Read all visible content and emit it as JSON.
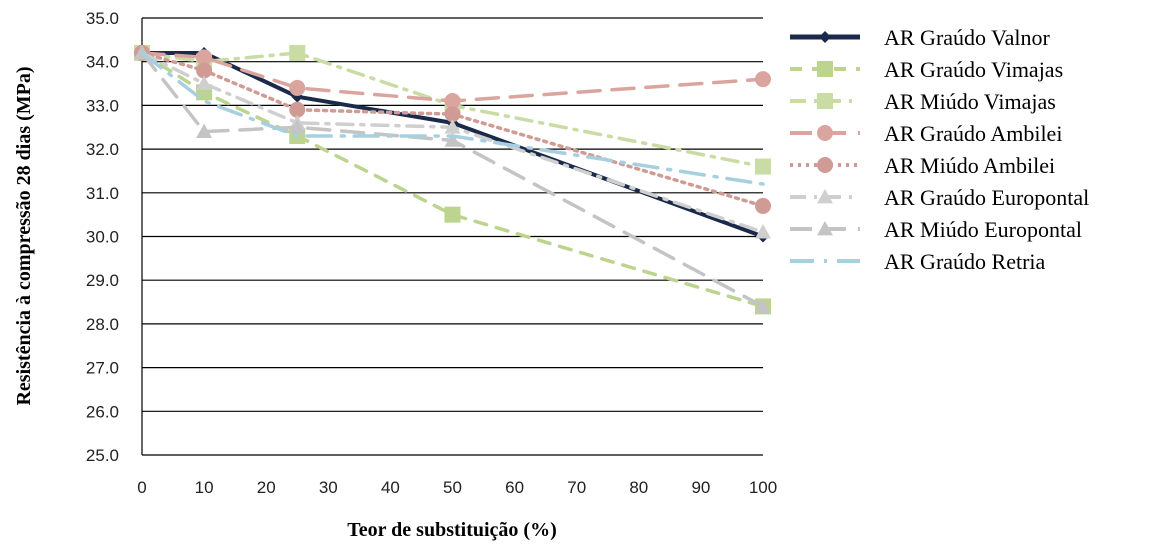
{
  "chart_data": {
    "type": "line",
    "title": "",
    "xlabel": "Teor de substituição (%)",
    "ylabel": "Resistência à compressão 28 dias (MPa)",
    "xlim": [
      0,
      100
    ],
    "ylim": [
      25.0,
      35.0
    ],
    "x_ticks": [
      "0",
      "10",
      "20",
      "30",
      "40",
      "50",
      "60",
      "70",
      "80",
      "90",
      "100"
    ],
    "y_ticks": [
      "25.0",
      "26.0",
      "27.0",
      "28.0",
      "29.0",
      "30.0",
      "31.0",
      "32.0",
      "33.0",
      "34.0",
      "35.0"
    ],
    "grid": "horizontal",
    "legend_position": "right",
    "series": [
      {
        "name": "AR Graúdo Valnor",
        "color": "#1b2a4a",
        "marker": "diamond",
        "dash": "solid",
        "x": [
          0,
          10,
          25,
          50,
          100
        ],
        "y": [
          34.2,
          34.2,
          33.2,
          32.6,
          30.0
        ]
      },
      {
        "name": "AR Graúdo Vimajas",
        "color": "#bcd48e",
        "marker": "square",
        "dash": "dash",
        "x": [
          0,
          10,
          25,
          50,
          100
        ],
        "y": [
          34.2,
          33.3,
          32.3,
          30.5,
          28.4
        ]
      },
      {
        "name": "AR Miúdo Vimajas",
        "color": "#c8dca4",
        "marker": "square",
        "dash": "dashdot",
        "x": [
          0,
          10,
          25,
          50,
          100
        ],
        "y": [
          34.2,
          34.0,
          34.2,
          33.0,
          31.6
        ]
      },
      {
        "name": "AR Graúdo Ambilei",
        "color": "#daa59f",
        "marker": "circle",
        "dash": "longdash",
        "x": [
          0,
          10,
          25,
          50,
          100
        ],
        "y": [
          34.2,
          34.1,
          33.4,
          33.1,
          33.6
        ]
      },
      {
        "name": "AR Miúdo Ambilei",
        "color": "#d19b95",
        "marker": "circle",
        "dash": "dot",
        "x": [
          0,
          10,
          25,
          50,
          100
        ],
        "y": [
          34.2,
          33.8,
          32.9,
          32.8,
          30.7
        ]
      },
      {
        "name": "AR Graúdo Europontal",
        "color": "#cfcfcf",
        "marker": "triangle",
        "dash": "dashdot",
        "x": [
          0,
          10,
          25,
          50,
          100
        ],
        "y": [
          34.2,
          33.5,
          32.6,
          32.5,
          30.1
        ]
      },
      {
        "name": "AR Miúdo Europontal",
        "color": "#c4c4c4",
        "marker": "triangle",
        "dash": "longdash",
        "x": [
          0,
          10,
          25,
          50,
          100
        ],
        "y": [
          34.2,
          32.4,
          32.5,
          32.2,
          28.4
        ]
      },
      {
        "name": "AR Graúdo Retria",
        "color": "#a8cfe0",
        "marker": "none",
        "dash": "longdashdot",
        "x": [
          0,
          10,
          25,
          50,
          100
        ],
        "y": [
          34.2,
          33.1,
          32.3,
          32.3,
          31.2
        ]
      }
    ]
  }
}
